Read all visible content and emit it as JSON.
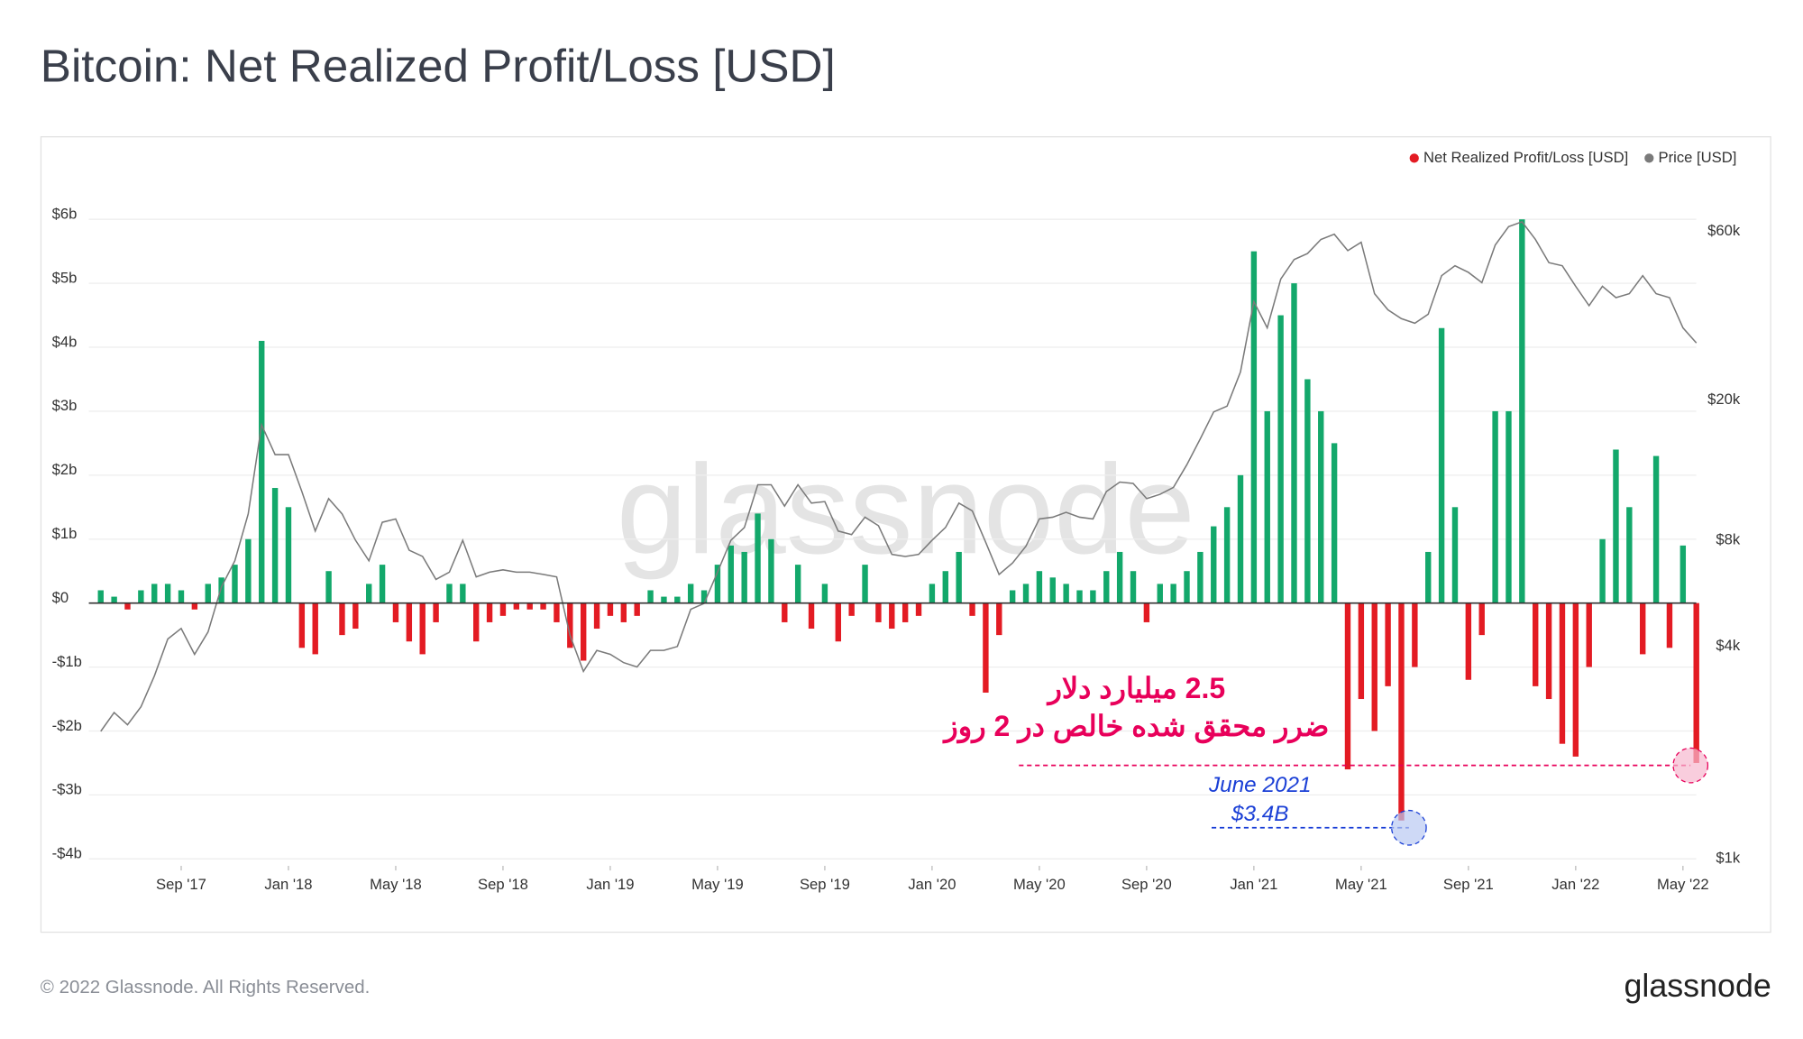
{
  "chart_data": {
    "type": "bar",
    "title": "Bitcoin: Net Realized Profit/Loss [USD]",
    "categories": [
      null,
      null,
      null,
      null,
      null,
      null,
      "Sep '17",
      null,
      null,
      null,
      null,
      null,
      null,
      null,
      "Jan '18",
      null,
      null,
      null,
      null,
      null,
      null,
      null,
      "May '18",
      null,
      null,
      null,
      null,
      null,
      null,
      null,
      "Sep '18",
      null,
      null,
      null,
      null,
      null,
      null,
      null,
      "Jan '19",
      null,
      null,
      null,
      null,
      null,
      null,
      null,
      "May '19",
      null,
      null,
      null,
      null,
      null,
      null,
      null,
      "Sep '19",
      null,
      null,
      null,
      null,
      null,
      null,
      null,
      "Jan '20",
      null,
      null,
      null,
      null,
      null,
      null,
      null,
      "May '20",
      null,
      null,
      null,
      null,
      null,
      null,
      null,
      "Sep '20",
      null,
      null,
      null,
      null,
      null,
      null,
      null,
      "Jan '21",
      null,
      null,
      null,
      null,
      null,
      null,
      null,
      "May '21",
      null,
      null,
      null,
      null,
      null,
      null,
      null,
      "Sep '21",
      null,
      null,
      null,
      null,
      null,
      null,
      null,
      "Jan '22",
      null,
      null,
      null,
      null,
      null,
      null,
      null,
      "May '22",
      null
    ],
    "series": [
      {
        "name": "Net Realized Profit/Loss [USD]",
        "color": "#e31b23",
        "positive_color": "#13a86b",
        "values": [
          0.2,
          0.1,
          -0.1,
          0.2,
          0.3,
          0.3,
          0.2,
          -0.1,
          0.3,
          0.4,
          0.6,
          1.0,
          4.1,
          1.8,
          1.5,
          -0.7,
          -0.8,
          0.5,
          -0.5,
          -0.4,
          0.3,
          0.6,
          -0.3,
          -0.6,
          -0.8,
          -0.3,
          0.3,
          0.3,
          -0.6,
          -0.3,
          -0.2,
          -0.1,
          -0.1,
          -0.1,
          -0.3,
          -0.7,
          -0.9,
          -0.4,
          -0.2,
          -0.3,
          -0.2,
          0.2,
          0.1,
          0.1,
          0.3,
          0.2,
          0.6,
          0.9,
          0.8,
          1.4,
          1.0,
          -0.3,
          0.6,
          -0.4,
          0.3,
          -0.6,
          -0.2,
          0.6,
          -0.3,
          -0.4,
          -0.3,
          -0.2,
          0.3,
          0.5,
          0.8,
          -0.2,
          -1.4,
          -0.5,
          0.2,
          0.3,
          0.5,
          0.4,
          0.3,
          0.2,
          0.2,
          0.5,
          0.8,
          0.5,
          -0.3,
          0.3,
          0.3,
          0.5,
          0.8,
          1.2,
          1.5,
          2.0,
          5.5,
          3.0,
          4.5,
          5.0,
          3.5,
          3.0,
          2.5,
          -2.6,
          -1.5,
          -2.0,
          -1.3,
          -3.4,
          -1.0,
          0.8,
          4.3,
          1.5,
          -1.2,
          -0.5,
          3.0,
          3.0,
          6.0,
          -1.3,
          -1.5,
          -2.2,
          -2.4,
          -1.0,
          1.0,
          2.4,
          1.5,
          -0.8,
          2.3,
          -0.7,
          0.9,
          -2.5
        ]
      },
      {
        "name": "Price [USD]",
        "color": "#7a7a7a",
        "type": "line",
        "axis": "y2",
        "values": [
          2300,
          2600,
          2400,
          2700,
          3300,
          4200,
          4500,
          3800,
          4400,
          5900,
          7000,
          9500,
          17000,
          14000,
          14000,
          11000,
          8500,
          10500,
          9500,
          8000,
          7000,
          9000,
          9200,
          7500,
          7200,
          6200,
          6500,
          8000,
          6300,
          6500,
          6600,
          6500,
          6500,
          6400,
          6300,
          4300,
          3400,
          3900,
          3800,
          3600,
          3500,
          3900,
          3900,
          4000,
          5100,
          5300,
          6500,
          8000,
          8700,
          11500,
          11500,
          10000,
          11500,
          10200,
          10300,
          8500,
          8300,
          9300,
          8800,
          7300,
          7200,
          7300,
          8000,
          8700,
          10200,
          9700,
          7900,
          6400,
          6900,
          7700,
          9200,
          9300,
          9600,
          9300,
          9200,
          11000,
          11700,
          11600,
          10500,
          10800,
          11300,
          13100,
          15500,
          18500,
          19200,
          24000,
          38000,
          32000,
          44000,
          50000,
          52000,
          57000,
          59000,
          53000,
          56000,
          40000,
          36000,
          34000,
          33000,
          35000,
          45000,
          48000,
          46000,
          43000,
          55000,
          62000,
          64000,
          57000,
          49000,
          48000,
          42000,
          37000,
          42000,
          39000,
          40000,
          45000,
          40000,
          39000,
          32000,
          29000
        ]
      }
    ],
    "ylim": [
      -4,
      6
    ],
    "yticks": [
      {
        "value": -4,
        "label": "-$4b"
      },
      {
        "value": -3,
        "label": "-$3b"
      },
      {
        "value": -2,
        "label": "-$2b"
      },
      {
        "value": -1,
        "label": "-$1b"
      },
      {
        "value": 0,
        "label": "$0"
      },
      {
        "value": 1,
        "label": "$1b"
      },
      {
        "value": 2,
        "label": "$2b"
      },
      {
        "value": 3,
        "label": "$3b"
      },
      {
        "value": 4,
        "label": "$4b"
      },
      {
        "value": 5,
        "label": "$5b"
      },
      {
        "value": 6,
        "label": "$6b"
      }
    ],
    "y2lim": [
      1000,
      65000
    ],
    "y2log": true,
    "y2ticks": [
      {
        "value": 1000,
        "label": "$1k"
      },
      {
        "value": 4000,
        "label": "$4k"
      },
      {
        "value": 8000,
        "label": "$8k"
      },
      {
        "value": 20000,
        "label": "$20k"
      },
      {
        "value": 60000,
        "label": "$60k"
      }
    ],
    "grid": true,
    "legend": "top-right",
    "annotations": [
      "2.5 میلیارد دلار",
      "ضرر محقق شده خالص در 2 روز",
      "June 2021",
      "$3.4B"
    ],
    "watermark": "glassnode",
    "footer": "© 2022 Glassnode. All Rights Reserved.",
    "logo": "glassnode"
  }
}
